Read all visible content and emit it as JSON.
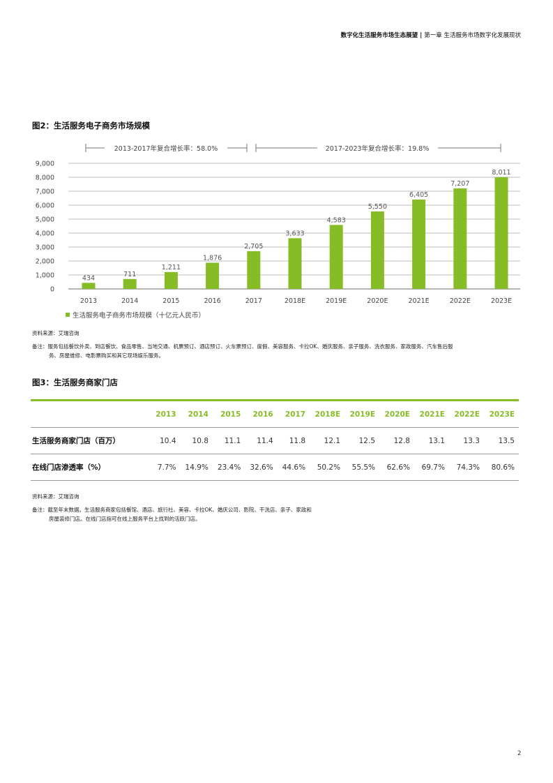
{
  "header": {
    "doc_title": "数字化生活服务市场生态展望",
    "separator": "|",
    "chapter": "第一章 生活服务市场数字化发展现状"
  },
  "figure2": {
    "title": "图2：生活服务电子商务市场规模",
    "cagr_1": "2013-2017年复合增长率：58.0%",
    "cagr_2": "2017-2023年复合增长率：19.8%",
    "legend": "生活服务电子商务市场规模（十亿元人民币）",
    "source": "资料来源：艾瑞咨询",
    "note_line1": "备注：服务包括餐饮外卖、到店餐饮、食品零售、当地交通、机票预订、酒店预订、火车票预订、度假、美容服务、卡拉OK、婚庆服务、亲子服务、洗衣服务、家政服务、汽车售后服",
    "note_line2": "务、房屋维修、电影票购买和其它现场娱乐服务。"
  },
  "chart_data": {
    "type": "bar",
    "title": "图2：生活服务电子商务市场规模",
    "categories": [
      "2013",
      "2014",
      "2015",
      "2016",
      "2017",
      "2018E",
      "2019E",
      "2020E",
      "2021E",
      "2022E",
      "2023E"
    ],
    "series": [
      {
        "name": "生活服务电子商务市场规模（十亿元人民币）",
        "values": [
          434,
          711,
          1211,
          1876,
          2705,
          3633,
          4583,
          5550,
          6405,
          7207,
          8011
        ],
        "labels": [
          "434",
          "711",
          "1,211",
          "1,876",
          "2,705",
          "3,633",
          "4,583",
          "5,550",
          "6,405",
          "7,207",
          "8,011"
        ],
        "color": "#86bc25"
      }
    ],
    "yticks": [
      "0",
      "1,000",
      "2,000",
      "3,000",
      "4,000",
      "5,000",
      "6,000",
      "7,000",
      "8,000",
      "9,000"
    ],
    "ylim": [
      0,
      9000
    ],
    "xlabel": "",
    "ylabel": "",
    "grid": true,
    "legend_position": "bottom-left",
    "annotations": [
      "2013-2017年复合增长率：58.0%",
      "2017-2023年复合增长率：19.8%"
    ]
  },
  "figure3": {
    "title": "图3：生活服务商家门店",
    "columns": [
      "2013",
      "2014",
      "2015",
      "2016",
      "2017",
      "2018E",
      "2019E",
      "2020E",
      "2021E",
      "2022E",
      "2023E"
    ],
    "rows": [
      {
        "label": "生活服务商家门店（百万）",
        "values": [
          "10.4",
          "10.8",
          "11.1",
          "11.4",
          "11.8",
          "12.1",
          "12.5",
          "12.8",
          "13.1",
          "13.3",
          "13.5"
        ]
      },
      {
        "label": "在线门店渗透率（%）",
        "values": [
          "7.7%",
          "14.9%",
          "23.4%",
          "32.6%",
          "44.6%",
          "50.2%",
          "55.5%",
          "62.6%",
          "69.7%",
          "74.3%",
          "80.6%"
        ]
      }
    ],
    "source": "资料来源：艾瑞咨询",
    "note_line1": "备注：截至年末数据。生活服务商家包括餐馆、酒店、旅行社、美容、卡拉OK、婚庆公司、影院、干洗店、亲子、家政和",
    "note_line2": "房屋装修门店。在线门店指可在线上服务平台上找到的活跃门店。"
  },
  "page_number": "2",
  "colors": {
    "accent": "#86bc25",
    "grid": "#bdbdbd",
    "text": "#444444"
  }
}
